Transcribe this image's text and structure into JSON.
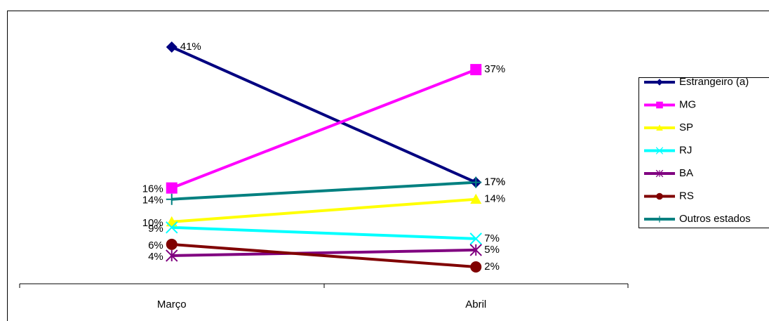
{
  "chart_data": {
    "type": "line",
    "categories": [
      "Março",
      "Abril"
    ],
    "series": [
      {
        "name": "Estrangeiro (a)",
        "color": "#000080",
        "marker": "diamond",
        "values": [
          41,
          17
        ],
        "value_labels": [
          "41%",
          "17%"
        ]
      },
      {
        "name": "MG",
        "color": "#ff00ff",
        "marker": "square",
        "values": [
          16,
          37
        ],
        "value_labels": [
          "16%",
          "37%"
        ]
      },
      {
        "name": "SP",
        "color": "#ffff00",
        "marker": "triangle",
        "values": [
          10,
          14
        ],
        "value_labels": [
          "10%",
          "14%"
        ]
      },
      {
        "name": "RJ",
        "color": "#00ffff",
        "marker": "x",
        "values": [
          9,
          7
        ],
        "value_labels": [
          "9%",
          "7%"
        ]
      },
      {
        "name": "BA",
        "color": "#800080",
        "marker": "star",
        "values": [
          4,
          5
        ],
        "value_labels": [
          "4%",
          "5%"
        ]
      },
      {
        "name": "RS",
        "color": "#800000",
        "marker": "circle",
        "values": [
          6,
          2
        ],
        "value_labels": [
          "6%",
          "2%"
        ]
      },
      {
        "name": "Outros estados",
        "color": "#008080",
        "marker": "plus",
        "values": [
          14,
          17
        ],
        "value_labels": [
          "14%",
          "17%"
        ]
      }
    ],
    "legend": "right"
  }
}
